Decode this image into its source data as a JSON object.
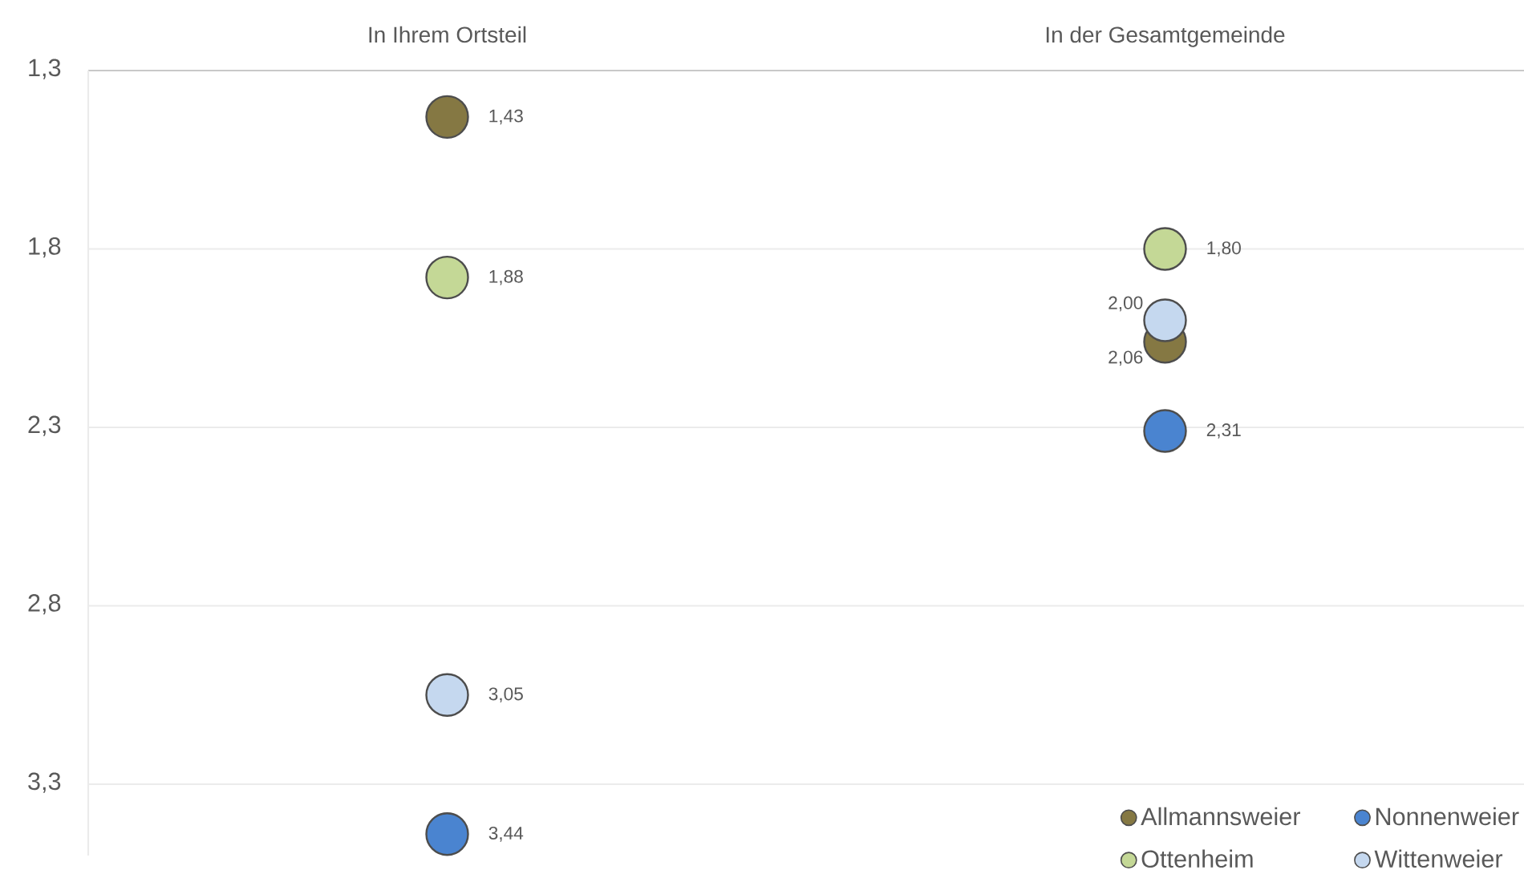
{
  "chart_data": {
    "type": "scatter",
    "categories": [
      "In Ihrem Ortsteil",
      "In der Gesamtgemeinde"
    ],
    "ylim": [
      3.5,
      1.3
    ],
    "yticks": [
      {
        "value": 1.3,
        "label": "1,3"
      },
      {
        "value": 1.8,
        "label": "1,8"
      },
      {
        "value": 2.3,
        "label": "2,3"
      },
      {
        "value": 2.8,
        "label": "2,8"
      },
      {
        "value": 3.3,
        "label": "3,3"
      }
    ],
    "grid": "y",
    "legend": "bottom right",
    "marker": "circle",
    "series": [
      {
        "name": "Allmannsweier",
        "color": "#857843",
        "values": [
          1.43,
          2.06
        ],
        "value_labels": [
          "1,43",
          "2,06"
        ]
      },
      {
        "name": "Nonnenweier",
        "color": "#4a84d0",
        "values": [
          3.44,
          2.31
        ],
        "value_labels": [
          "3,44",
          "2,31"
        ]
      },
      {
        "name": "Ottenheim",
        "color": "#c4d896",
        "values": [
          1.88,
          1.8
        ],
        "value_labels": [
          "1,88",
          "1,80"
        ]
      },
      {
        "name": "Wittenweier",
        "color": "#c5d8ef",
        "values": [
          3.05,
          2.0
        ],
        "value_labels": [
          "3,05",
          "2,00"
        ]
      }
    ]
  }
}
